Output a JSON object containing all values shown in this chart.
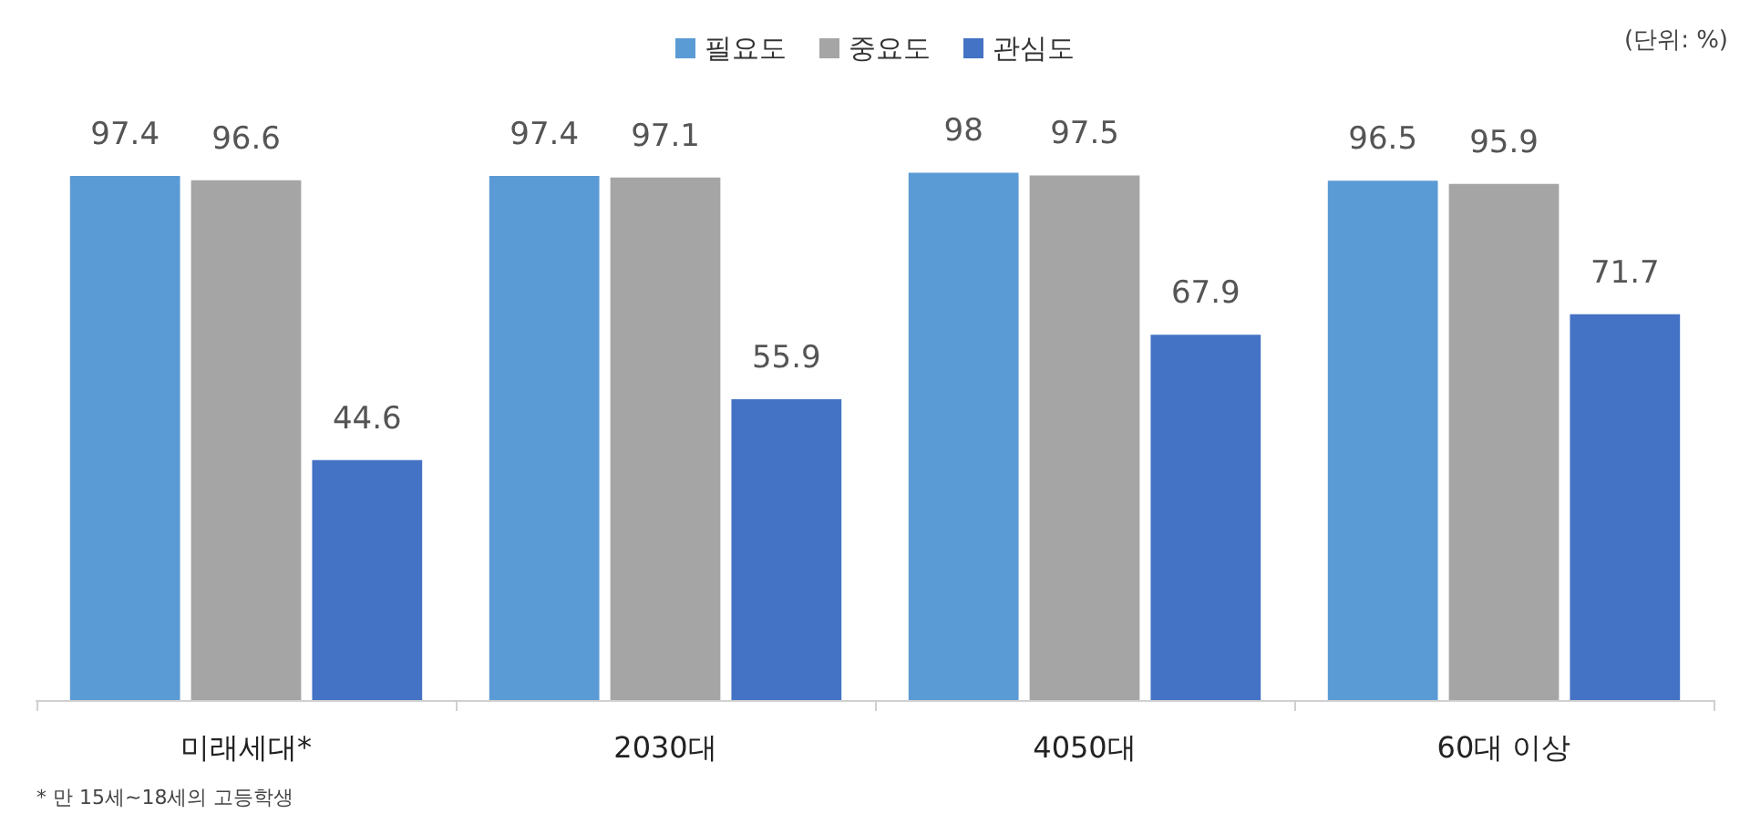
{
  "chart_data": {
    "type": "bar",
    "categories": [
      "미래세대*",
      "2030대",
      "4050대",
      "60대 이상"
    ],
    "series": [
      {
        "name": "필요도",
        "color": "#5b9bd5",
        "values": [
          97.4,
          97.4,
          98,
          96.5
        ]
      },
      {
        "name": "중요도",
        "color": "#a5a5a5",
        "values": [
          96.6,
          97.1,
          97.5,
          95.9
        ]
      },
      {
        "name": "관심도",
        "color": "#4472c4",
        "values": [
          44.6,
          55.9,
          67.9,
          71.7
        ]
      }
    ],
    "data_labels": true,
    "legend": "top",
    "tick_labels": "x",
    "annotations": [
      "(단위: %)",
      "* 만 15세~18세의 고등학생"
    ]
  }
}
